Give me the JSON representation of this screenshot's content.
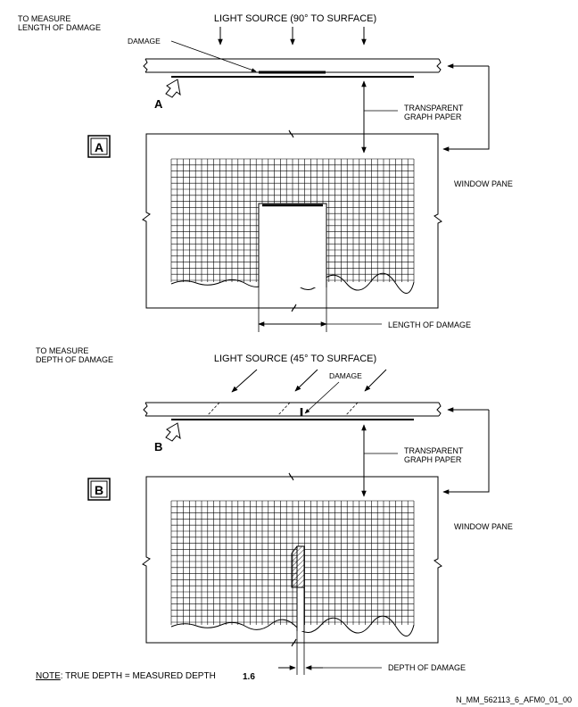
{
  "section_a": {
    "caption": "TO MEASURE\nLENGTH OF DAMAGE",
    "light_source": "LIGHT SOURCE (90° TO SURFACE)",
    "damage": "DAMAGE",
    "view_letter": "A",
    "badge": "A",
    "graph_paper": "TRANSPARENT\nGRAPH PAPER",
    "window_pane": "WINDOW PANE",
    "length_of_damage": "LENGTH OF DAMAGE"
  },
  "section_b": {
    "caption": "TO MEASURE\nDEPTH OF DAMAGE",
    "light_source": "LIGHT SOURCE (45° TO SURFACE)",
    "damage": "DAMAGE",
    "view_letter": "B",
    "badge": "B",
    "graph_paper": "TRANSPARENT\nGRAPH PAPER",
    "window_pane": "WINDOW PANE",
    "depth_of_damage": "DEPTH OF DAMAGE"
  },
  "note": {
    "label": "NOTE",
    "text": ": TRUE DEPTH = MEASURED DEPTH",
    "factor": "1.6"
  },
  "figure_id": "N_MM_562113_6_AFM0_01_00"
}
